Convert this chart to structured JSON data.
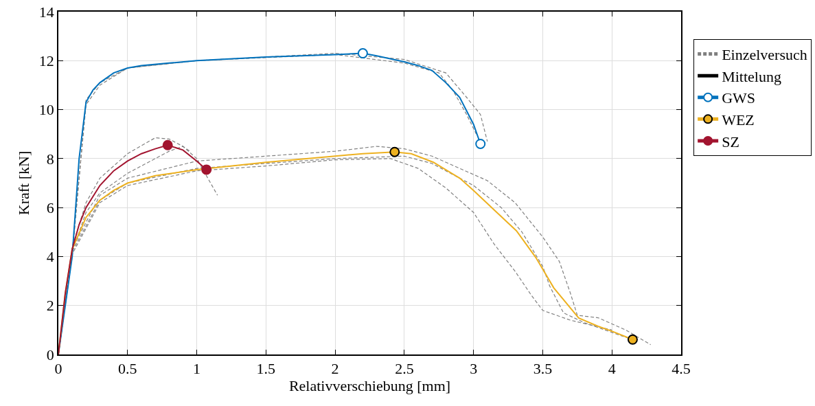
{
  "chart_data": {
    "type": "line",
    "xlabel": "Relativverschiebung [mm]",
    "ylabel": "Kraft [kN]",
    "xlim": [
      0,
      4.5
    ],
    "xticks": [
      0,
      0.5,
      1,
      1.5,
      2,
      2.5,
      3,
      3.5,
      4,
      4.5
    ],
    "ylim": [
      0,
      14
    ],
    "yticks": [
      0,
      2,
      4,
      6,
      8,
      10,
      12,
      14
    ],
    "grid": true,
    "legend": "right",
    "series": [
      {
        "name": "Einzelversuch",
        "color": "#808080",
        "line_style": "dashed",
        "x": [
          0,
          0.1,
          0.2,
          0.3,
          0.5,
          1,
          2,
          2.5,
          2.8,
          2.95,
          3.05,
          3.1
        ],
        "values": [
          0,
          4.2,
          10.2,
          11.0,
          11.7,
          12.0,
          12.3,
          12.05,
          11.5,
          10.5,
          9.8,
          8.7
        ]
      },
      {
        "color": "#808080",
        "line_style": "dashed",
        "x": [
          0,
          0.1,
          0.2,
          0.3,
          0.5,
          1,
          2,
          2.5,
          2.75,
          2.85,
          2.95,
          3.02
        ],
        "values": [
          0,
          4.0,
          10.4,
          11.1,
          11.7,
          12.0,
          12.25,
          11.9,
          11.5,
          10.8,
          9.8,
          9.0
        ]
      },
      {
        "color": "#808080",
        "line_style": "dashed",
        "x": [
          0,
          0.1,
          0.2,
          0.3,
          0.5,
          0.7,
          0.8,
          0.9,
          1.0,
          1.1,
          1.15
        ],
        "values": [
          0,
          4.4,
          6.2,
          7.2,
          8.2,
          8.85,
          8.8,
          8.5,
          8.0,
          7.0,
          6.5
        ]
      },
      {
        "color": "#808080",
        "line_style": "dashed",
        "x": [
          0,
          0.1,
          0.2,
          0.3,
          0.5,
          0.7,
          0.8,
          0.9,
          0.95
        ],
        "values": [
          0,
          4.2,
          5.8,
          6.6,
          7.4,
          8.0,
          8.3,
          8.5,
          8.3
        ]
      },
      {
        "color": "#808080",
        "line_style": "dashed",
        "x": [
          0,
          0.1,
          0.3,
          0.5,
          1.0,
          1.5,
          2.0,
          2.3,
          2.5,
          2.7,
          2.9,
          3.1,
          3.3,
          3.5,
          3.62,
          3.7,
          3.75,
          3.9,
          4.1,
          4.28
        ],
        "values": [
          0,
          4.3,
          6.5,
          7.2,
          7.9,
          8.1,
          8.3,
          8.5,
          8.4,
          8.1,
          7.6,
          7.1,
          6.2,
          4.8,
          3.8,
          2.5,
          1.6,
          1.5,
          1.0,
          0.4
        ]
      },
      {
        "color": "#808080",
        "line_style": "dashed",
        "x": [
          0,
          0.1,
          0.3,
          0.5,
          1.0,
          1.5,
          2.0,
          2.5,
          2.7,
          3.0,
          3.2,
          3.35,
          3.5,
          3.55,
          3.65,
          3.8,
          4.0,
          4.15
        ],
        "values": [
          0,
          4.2,
          6.3,
          7.0,
          7.6,
          7.8,
          8.0,
          8.1,
          7.8,
          6.9,
          6.0,
          5.0,
          3.6,
          2.8,
          1.7,
          1.3,
          0.9,
          0.6
        ]
      },
      {
        "color": "#808080",
        "line_style": "dashed",
        "x": [
          0,
          0.1,
          0.3,
          0.5,
          1.0,
          1.5,
          2.0,
          2.4,
          2.6,
          2.8,
          3.0,
          3.15,
          3.3,
          3.42,
          3.5,
          3.7,
          4.0
        ],
        "values": [
          0,
          4.1,
          6.2,
          6.9,
          7.5,
          7.7,
          7.95,
          8.0,
          7.6,
          6.8,
          5.8,
          4.5,
          3.4,
          2.4,
          1.8,
          1.4,
          1.0
        ]
      },
      {
        "name": "Mittelung",
        "color": "#000000",
        "x": [
          null
        ],
        "values": [
          null
        ]
      },
      {
        "color": "#0072bd",
        "x": [
          0,
          0.1,
          0.15,
          0.2,
          0.25,
          0.3,
          0.4,
          0.5,
          0.6,
          0.8,
          1.0,
          1.5,
          2.0,
          2.2,
          2.3,
          2.5,
          2.6,
          2.7,
          2.8,
          2.9,
          3.0,
          3.05
        ],
        "values": [
          0,
          4,
          8,
          10.3,
          10.8,
          11.1,
          11.5,
          11.7,
          11.8,
          11.9,
          12.0,
          12.15,
          12.25,
          12.3,
          12.2,
          11.95,
          11.8,
          11.6,
          11.1,
          10.5,
          9.4,
          8.6
        ]
      },
      {
        "type": "scatter",
        "name": "GWS",
        "marker": "circle",
        "color": "#0072bd",
        "colors": [
          "#ffffff",
          "#ffffff"
        ],
        "x": [
          2.2,
          3.05
        ],
        "values": [
          12.3,
          8.6
        ]
      },
      {
        "color": "#edb120",
        "x": [
          0,
          0.05,
          0.1,
          0.2,
          0.3,
          0.4,
          0.5,
          0.7,
          1.0,
          1.5,
          2.0,
          2.2,
          2.43,
          2.55,
          2.71,
          2.9,
          3.0,
          3.15,
          3.31,
          3.45,
          3.58,
          3.76,
          3.9,
          4.0,
          4.15
        ],
        "values": [
          0,
          2.5,
          4.3,
          5.6,
          6.3,
          6.7,
          7.0,
          7.3,
          7.55,
          7.85,
          8.1,
          8.2,
          8.27,
          8.2,
          7.85,
          7.2,
          6.7,
          5.9,
          5.05,
          3.96,
          2.72,
          1.49,
          1.15,
          0.95,
          0.61
        ]
      },
      {
        "type": "scatter",
        "name": "WEZ",
        "marker": "circle",
        "color": "#000000",
        "colors": [
          "#edb120",
          "#edb120"
        ],
        "x": [
          2.43,
          4.15
        ],
        "values": [
          8.27,
          0.61
        ]
      },
      {
        "color": "#a2142f",
        "x": [
          0,
          0.05,
          0.1,
          0.15,
          0.2,
          0.3,
          0.4,
          0.5,
          0.6,
          0.7,
          0.79,
          0.9,
          1.0,
          1.07
        ],
        "values": [
          0,
          2.5,
          4.3,
          5.3,
          6.0,
          6.9,
          7.5,
          7.9,
          8.2,
          8.4,
          8.55,
          8.35,
          7.9,
          7.55
        ]
      },
      {
        "type": "scatter",
        "name": "SZ",
        "marker": "circle",
        "color": "#a2142f",
        "colors": [
          "#a2142f",
          "#a2142f"
        ],
        "x": [
          0.79,
          1.07
        ],
        "values": [
          8.55,
          7.55
        ]
      }
    ]
  }
}
